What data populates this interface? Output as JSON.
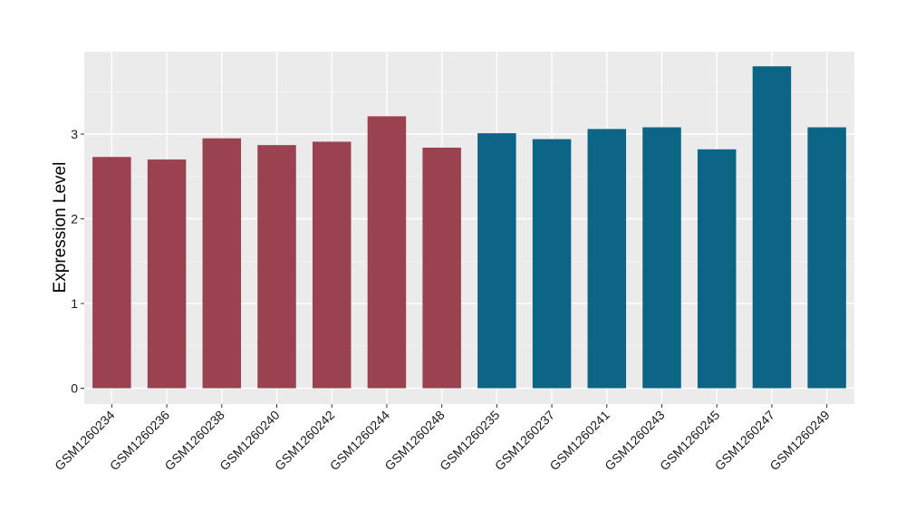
{
  "chart_data": {
    "type": "bar",
    "title": "",
    "xlabel": "",
    "ylabel": "Expression Level",
    "ylim": [
      0,
      3.9
    ],
    "yticks": [
      0,
      1,
      2,
      3
    ],
    "grid": true,
    "background": "#ebebeb",
    "categories": [
      "GSM1260234",
      "GSM1260236",
      "GSM1260238",
      "GSM1260240",
      "GSM1260242",
      "GSM1260244",
      "GSM1260248",
      "GSM1260235",
      "GSM1260237",
      "GSM1260241",
      "GSM1260243",
      "GSM1260245",
      "GSM1260247",
      "GSM1260249"
    ],
    "values": [
      2.73,
      2.7,
      2.95,
      2.87,
      2.91,
      3.21,
      2.84,
      3.01,
      2.94,
      3.06,
      3.08,
      2.82,
      3.8,
      3.08
    ],
    "bar_colors": [
      "#9a4250",
      "#9a4250",
      "#9a4250",
      "#9a4250",
      "#9a4250",
      "#9a4250",
      "#9a4250",
      "#0d6585",
      "#0d6585",
      "#0d6585",
      "#0d6585",
      "#0d6585",
      "#0d6585",
      "#0d6585"
    ]
  }
}
